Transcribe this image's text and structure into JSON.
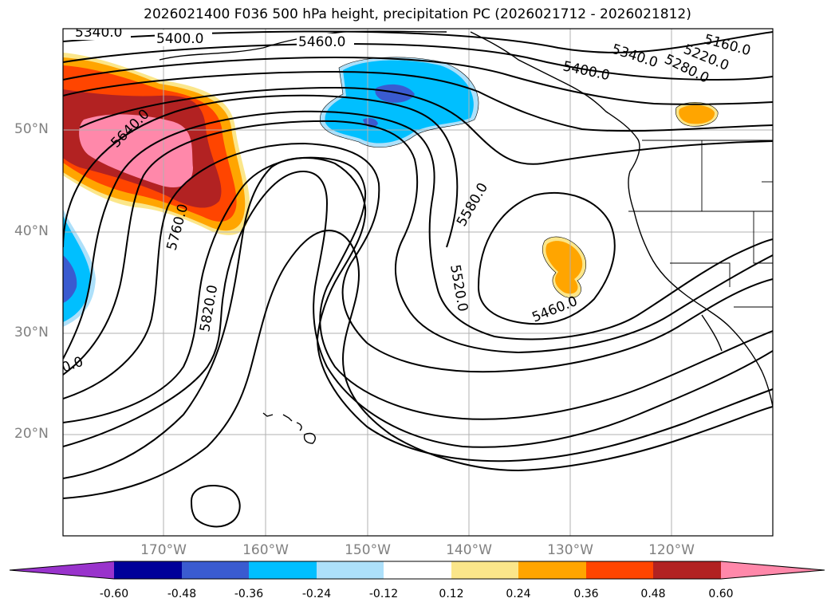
{
  "title": "2026021400 F036 500 hPa height, precipitation PC (2026021712 - 2026021812)",
  "lat_labels": [
    "50°N",
    "40°N",
    "30°N",
    "20°N"
  ],
  "lon_labels": [
    "170°W",
    "160°W",
    "150°W",
    "140°W",
    "130°W",
    "120°W"
  ],
  "colorbar": {
    "ticks": [
      "-0.60",
      "-0.48",
      "-0.36",
      "-0.24",
      "-0.12",
      "0.12",
      "0.24",
      "0.36",
      "0.48",
      "0.60"
    ],
    "colors": [
      "#9933cc",
      "#000099",
      "#3a5bd0",
      "#00bfff",
      "#ade0fa",
      "#ffffff",
      "#fbe68a",
      "#ffa500",
      "#ff4500",
      "#b22222",
      "#ff88aa"
    ]
  },
  "contour_labels": [
    "5340.0",
    "5400.0",
    "5460.0",
    "5340.0",
    "5400.0",
    "5160.0",
    "5220.0",
    "5280.0",
    "5640.0",
    "5760.0",
    "5820.0",
    "5580.0",
    "5520.0",
    "5460.0",
    "0.0"
  ],
  "colors": {
    "line": "#000000",
    "grid": "#b0b0b0",
    "label": "#808080"
  }
}
